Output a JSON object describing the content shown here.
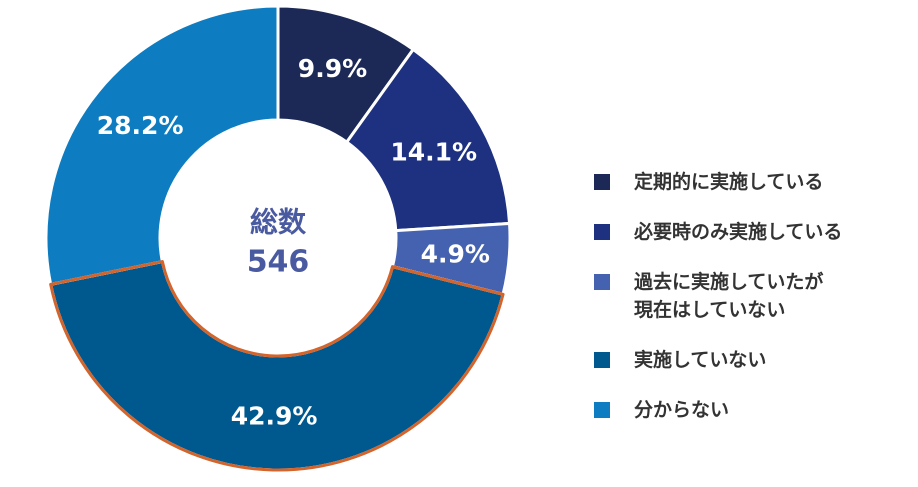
{
  "chart_data": {
    "type": "pie",
    "center_title": "総数",
    "center_value": "546",
    "slices": [
      {
        "label": "定期的に実施している",
        "value": 9.9,
        "value_text": "9.9%",
        "color": "#1c2956"
      },
      {
        "label": "必要時のみ実施している",
        "value": 14.1,
        "value_text": "14.1%",
        "color": "#1d3180"
      },
      {
        "label": "過去に実施していたが\n現在はしていない",
        "value": 4.9,
        "value_text": "4.9%",
        "color": "#4462b0"
      },
      {
        "label": "実施していない",
        "value": 42.9,
        "value_text": "42.9%",
        "color": "#00598e",
        "highlight": true
      },
      {
        "label": "分からない",
        "value": 28.2,
        "value_text": "28.2%",
        "color": "#0e7cc0"
      }
    ],
    "legend_position": "right",
    "highlight_border_color": "#d2642c",
    "center_text_color": "#4a5aa0"
  }
}
